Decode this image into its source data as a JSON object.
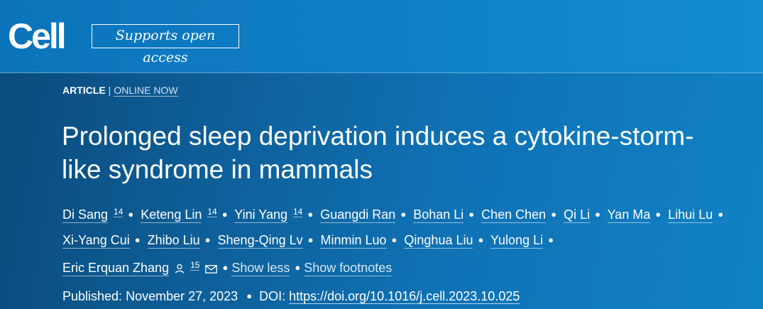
{
  "header": {
    "logo": "Cell",
    "open_access_label": "Supports open access"
  },
  "article": {
    "type": "ARTICLE",
    "separator": "|",
    "status": "ONLINE NOW",
    "title_line1": "Prolonged sleep deprivation induces a cytokine-storm-",
    "title_line2": "like syndrome in mammals"
  },
  "authors": [
    {
      "name": "Di Sang",
      "note": "14"
    },
    {
      "name": "Keteng Lin",
      "note": "14"
    },
    {
      "name": "Yini Yang",
      "note": "14"
    },
    {
      "name": "Guangdi Ran"
    },
    {
      "name": "Bohan Li"
    },
    {
      "name": "Chen Chen"
    },
    {
      "name": "Qi Li"
    },
    {
      "name": "Yan Ma"
    },
    {
      "name": "Lihui Lu"
    },
    {
      "name": "Xi-Yang Cui"
    },
    {
      "name": "Zhibo Liu"
    },
    {
      "name": "Sheng-Qing Lv"
    },
    {
      "name": "Minmin Luo"
    },
    {
      "name": "Qinghua Liu"
    },
    {
      "name": "Yulong Li"
    },
    {
      "name": "Eric Erquan Zhang",
      "note": "15"
    }
  ],
  "author_links": {
    "show_less": "Show less",
    "show_footnotes": "Show footnotes"
  },
  "publication": {
    "published_label": "Published:",
    "published_date": "November 27, 2023",
    "doi_label": "DOI:",
    "doi_url": "https://doi.org/10.1016/j.cell.2023.10.025"
  },
  "icons": {
    "author_profile": "person-icon",
    "corresponding_email": "envelope-icon"
  }
}
